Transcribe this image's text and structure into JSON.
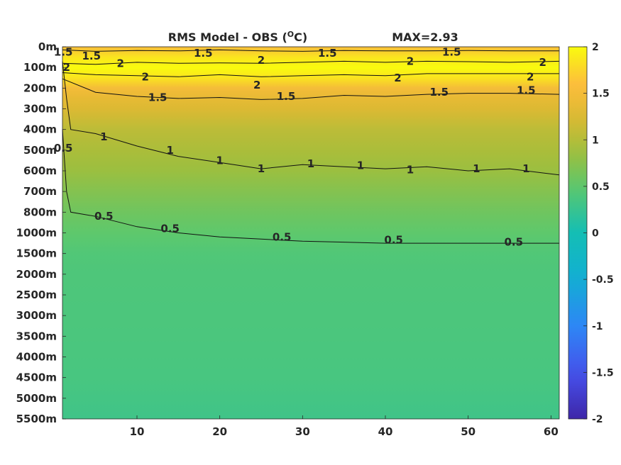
{
  "chart_data": {
    "type": "heatmap",
    "title": "RMS Model - OBS (",
    "title_superscript": "O",
    "title_unit_suffix": "C)",
    "annotation": "MAX=2.93",
    "xlabel": "",
    "ylabel": "",
    "x_ticks": [
      "10",
      "20",
      "30",
      "40",
      "50",
      "60"
    ],
    "x_tick_values": [
      10,
      20,
      30,
      40,
      50,
      60
    ],
    "xlim": [
      1,
      61
    ],
    "y_tick_labels": [
      "0m",
      "100m",
      "200m",
      "300m",
      "400m",
      "500m",
      "600m",
      "700m",
      "800m",
      "1000m",
      "1500m",
      "2000m",
      "2500m",
      "3000m",
      "3500m",
      "4000m",
      "4500m",
      "5000m",
      "5500m"
    ],
    "colorbar": {
      "ticks": [
        "2",
        "1.5",
        "1",
        "0.5",
        "0",
        "-0.5",
        "-1",
        "-1.5",
        "-2"
      ],
      "tick_values": [
        2,
        1.5,
        1,
        0.5,
        0,
        -0.5,
        -1,
        -1.5,
        -2
      ],
      "range": [
        -2,
        2
      ],
      "colormap": "parula"
    },
    "depth_profile": {
      "depth_index": [
        0,
        0.5,
        1,
        1.5,
        2,
        2.5,
        3,
        3.5,
        4,
        5,
        6,
        7,
        8,
        9,
        10,
        11,
        12,
        14,
        16,
        18
      ],
      "values": [
        1.55,
        1.85,
        2.05,
        1.85,
        1.5,
        1.35,
        1.25,
        1.15,
        1.05,
        0.95,
        0.85,
        0.72,
        0.6,
        0.5,
        0.42,
        0.4,
        0.39,
        0.38,
        0.36,
        0.3
      ]
    },
    "contours": [
      {
        "level": "1.5",
        "x": [
          1,
          5,
          10,
          15,
          20,
          25,
          30,
          35,
          40,
          45,
          50,
          55,
          61
        ],
        "depth_index": [
          0.15,
          0.22,
          0.18,
          0.2,
          0.15,
          0.2,
          0.22,
          0.18,
          0.2,
          0.2,
          0.18,
          0.2,
          0.2
        ]
      },
      {
        "level": "2",
        "x": [
          1,
          5,
          10,
          15,
          20,
          25,
          30,
          35,
          40,
          45,
          50,
          55,
          61
        ],
        "depth_index": [
          0.8,
          0.85,
          0.75,
          0.8,
          0.78,
          0.8,
          0.75,
          0.7,
          0.75,
          0.7,
          0.72,
          0.75,
          0.7
        ]
      },
      {
        "level": "2",
        "x": [
          1,
          5,
          10,
          15,
          20,
          25,
          30,
          35,
          40,
          45,
          50,
          55,
          61
        ],
        "depth_index": [
          1.25,
          1.35,
          1.4,
          1.45,
          1.35,
          1.45,
          1.4,
          1.35,
          1.4,
          1.3,
          1.3,
          1.3,
          1.3
        ]
      },
      {
        "level": "1.5",
        "x": [
          1,
          5,
          10,
          15,
          20,
          25,
          30,
          35,
          40,
          45,
          50,
          55,
          61
        ],
        "depth_index": [
          1.55,
          2.2,
          2.4,
          2.5,
          2.45,
          2.55,
          2.5,
          2.35,
          2.4,
          2.3,
          2.25,
          2.25,
          2.3
        ]
      },
      {
        "level": "1",
        "x": [
          1,
          1.5,
          2,
          5,
          10,
          15,
          20,
          25,
          30,
          35,
          40,
          45,
          50,
          55,
          61
        ],
        "depth_index": [
          0.7,
          2.5,
          4.0,
          4.2,
          4.8,
          5.3,
          5.6,
          5.9,
          5.7,
          5.8,
          5.9,
          5.8,
          6.0,
          5.9,
          6.2
        ]
      },
      {
        "level": "0.5",
        "x": [
          1,
          1.5,
          2,
          5,
          10,
          15,
          20,
          25,
          30,
          35,
          40,
          45,
          50,
          55,
          61
        ],
        "depth_index": [
          4.0,
          7.0,
          8.0,
          8.2,
          8.7,
          9.0,
          9.2,
          9.3,
          9.4,
          9.45,
          9.5,
          9.5,
          9.5,
          9.5,
          9.5
        ]
      }
    ],
    "contour_labels": [
      {
        "text": "1.5",
        "x": 4.5,
        "depth_index": 0.45
      },
      {
        "text": "1.5",
        "x": 18,
        "depth_index": 0.3
      },
      {
        "text": "1.5",
        "x": 33,
        "depth_index": 0.3
      },
      {
        "text": "1.5",
        "x": 48,
        "depth_index": 0.25
      },
      {
        "text": "2",
        "x": 8,
        "depth_index": 0.8
      },
      {
        "text": "2",
        "x": 25,
        "depth_index": 0.65
      },
      {
        "text": "2",
        "x": 43,
        "depth_index": 0.7
      },
      {
        "text": "2",
        "x": 59,
        "depth_index": 0.75
      },
      {
        "text": "2",
        "x": 1.5,
        "depth_index": 1.0
      },
      {
        "text": "2",
        "x": 11,
        "depth_index": 1.45
      },
      {
        "text": "2",
        "x": 24.5,
        "depth_index": 1.85
      },
      {
        "text": "2",
        "x": 41.5,
        "depth_index": 1.5
      },
      {
        "text": "2",
        "x": 57.5,
        "depth_index": 1.45
      },
      {
        "text": "1.5",
        "x": 12.5,
        "depth_index": 2.45
      },
      {
        "text": "1.5",
        "x": 28,
        "depth_index": 2.4
      },
      {
        "text": "1.5",
        "x": 46.5,
        "depth_index": 2.2
      },
      {
        "text": "1.5",
        "x": 57,
        "depth_index": 2.1
      },
      {
        "text": "1.5",
        "x": 1.1,
        "depth_index": 0.25
      },
      {
        "text": "1",
        "x": 6,
        "depth_index": 4.35
      },
      {
        "text": "1",
        "x": 14,
        "depth_index": 5.0
      },
      {
        "text": "1",
        "x": 20,
        "depth_index": 5.5
      },
      {
        "text": "1",
        "x": 25,
        "depth_index": 5.9
      },
      {
        "text": "1",
        "x": 31,
        "depth_index": 5.65
      },
      {
        "text": "1",
        "x": 37,
        "depth_index": 5.75
      },
      {
        "text": "1",
        "x": 43,
        "depth_index": 5.95
      },
      {
        "text": "1",
        "x": 51,
        "depth_index": 5.9
      },
      {
        "text": "1",
        "x": 57,
        "depth_index": 5.9
      },
      {
        "text": "0.5",
        "x": 1.1,
        "depth_index": 4.9
      },
      {
        "text": "0.5",
        "x": 6,
        "depth_index": 8.2
      },
      {
        "text": "0.5",
        "x": 14,
        "depth_index": 8.8
      },
      {
        "text": "0.5",
        "x": 27.5,
        "depth_index": 9.2
      },
      {
        "text": "0.5",
        "x": 41,
        "depth_index": 9.35
      },
      {
        "text": "0.5",
        "x": 55.5,
        "depth_index": 9.45
      }
    ]
  }
}
